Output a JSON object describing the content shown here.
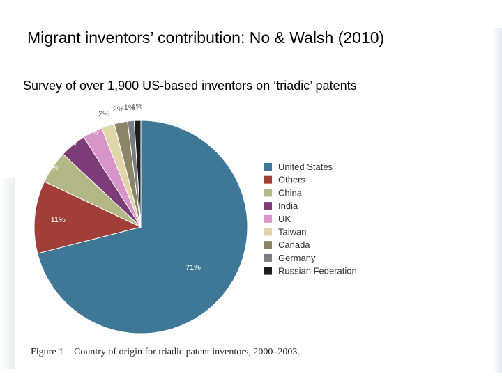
{
  "slide": {
    "title": "Migrant inventors’ contribution: No & Walsh (2010)",
    "subtitle": "Survey of over 1,900 US-based inventors on ‘triadic’ patents"
  },
  "figure_caption": {
    "label": "Figure 1",
    "text": "Country of origin for triadic patent inventors, 2000–2003."
  },
  "chart_data": {
    "type": "pie",
    "title": "",
    "legend_position": "right",
    "start": "top, clockwise",
    "slices": [
      {
        "name": "United States",
        "value": 71,
        "label": "71%",
        "color": "#3f7896"
      },
      {
        "name": "Others",
        "value": 11,
        "label": "11%",
        "color": "#a23e38"
      },
      {
        "name": "China",
        "value": 5,
        "label": "5%",
        "color": "#b3b886"
      },
      {
        "name": "India",
        "value": 4,
        "label": "4%",
        "color": "#7b3c77"
      },
      {
        "name": "UK",
        "value": 3,
        "label": "3%",
        "color": "#d895c8"
      },
      {
        "name": "Taiwan",
        "value": 2,
        "label": "2%",
        "color": "#e0d6a9"
      },
      {
        "name": "Canada",
        "value": 2,
        "label": "2%",
        "color": "#8c8467"
      },
      {
        "name": "Germany",
        "value": 1,
        "label": "1%",
        "color": "#7b7d80"
      },
      {
        "name": "Russian Federation",
        "value": 1,
        "label": "1%",
        "color": "#1e1d1e"
      }
    ]
  }
}
